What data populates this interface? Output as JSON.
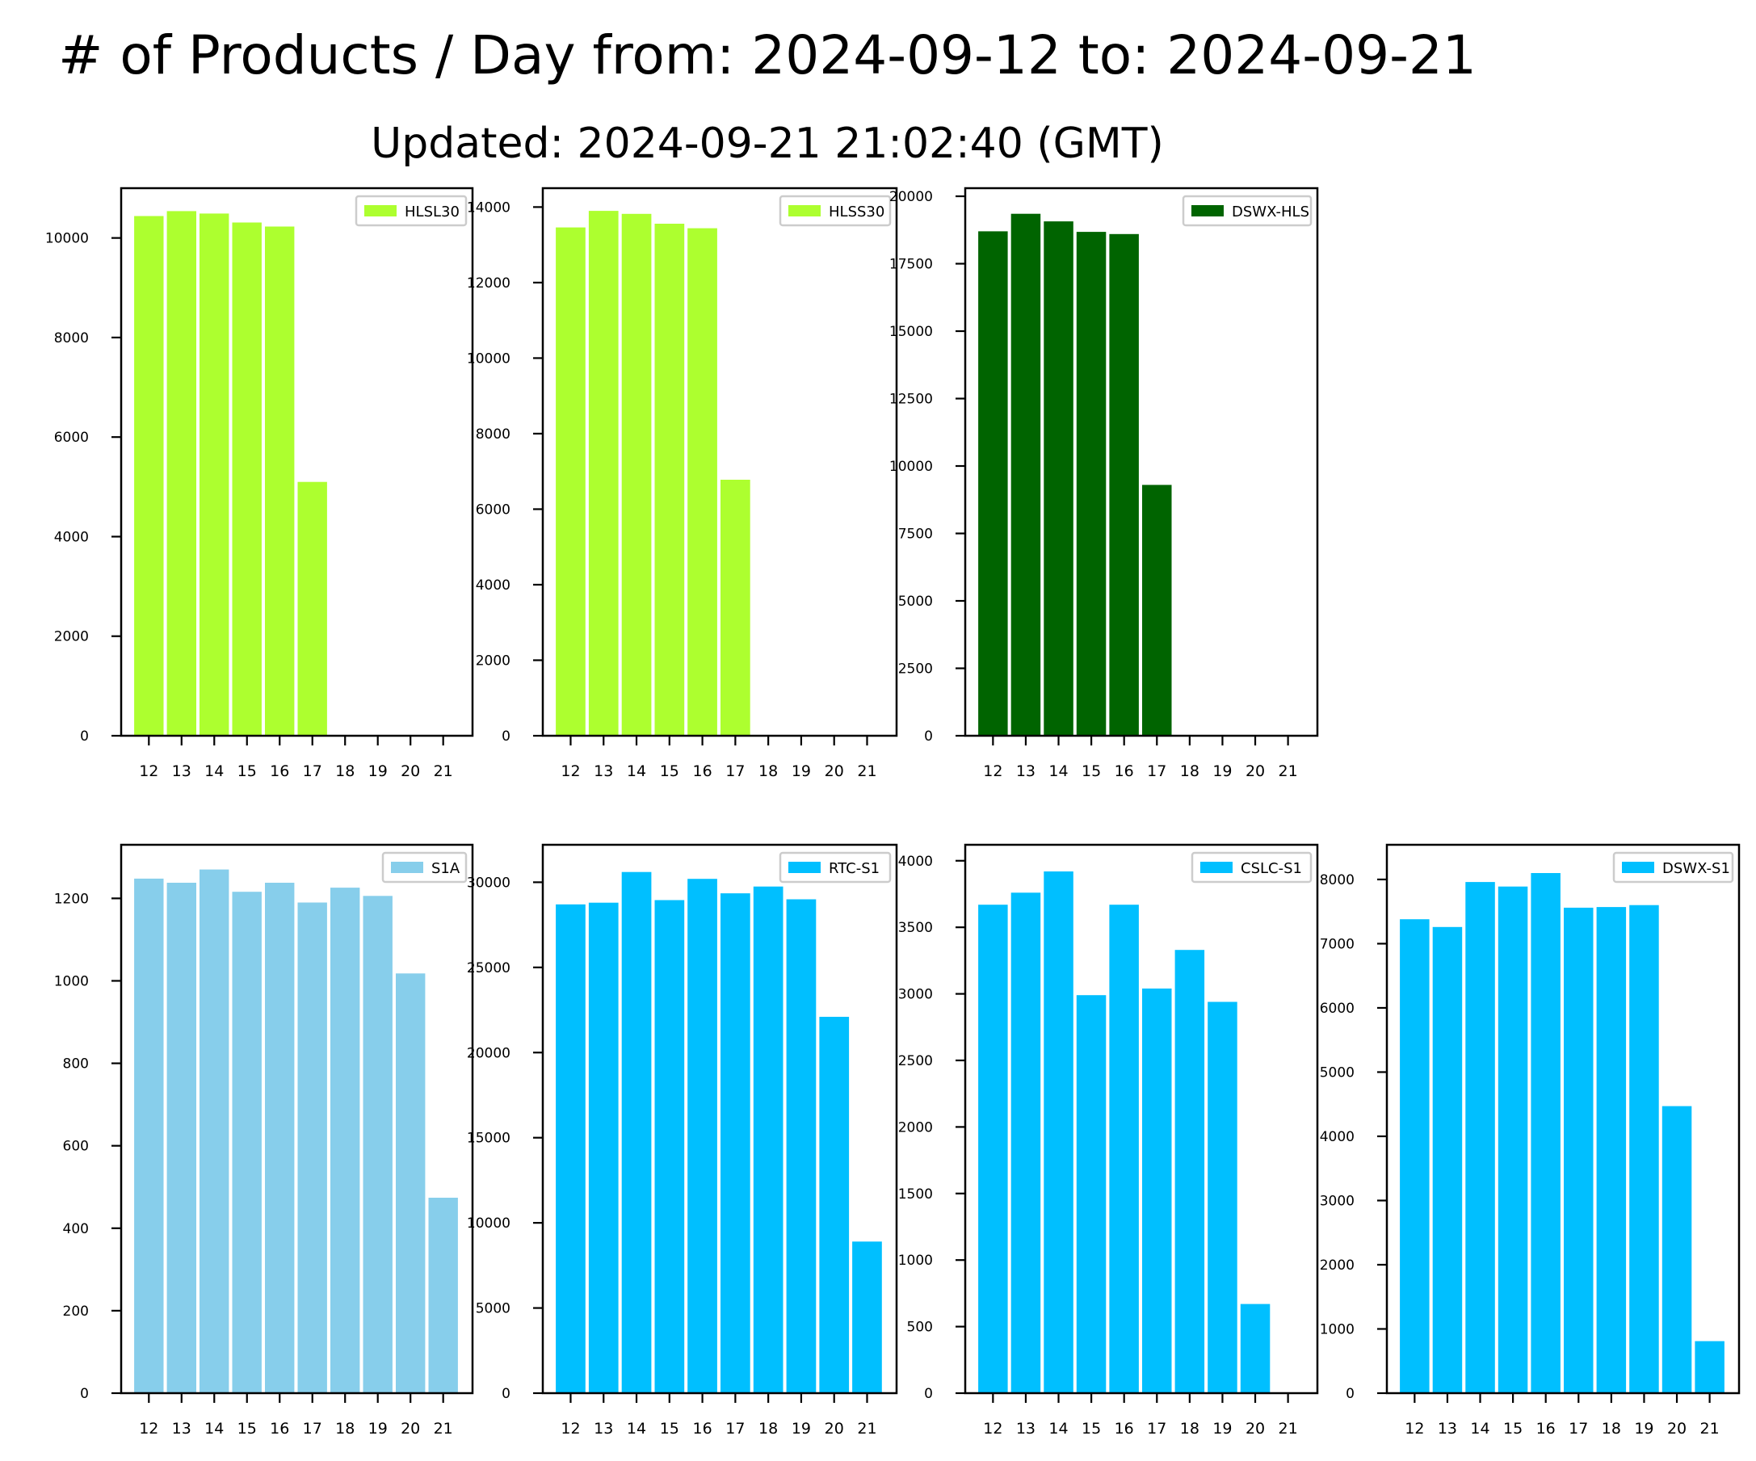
{
  "title": "# of Products / Day from: 2024-09-12 to: 2024-09-21",
  "subtitle": "Updated: 2024-09-21 21:02:40 (GMT)",
  "chart_data": [
    {
      "type": "bar",
      "categories": [
        "12",
        "13",
        "14",
        "15",
        "16",
        "17",
        "18",
        "19",
        "20",
        "21"
      ],
      "series": [
        {
          "name": "HLSL30",
          "color": "#adff2f",
          "values": [
            10440,
            10540,
            10490,
            10310,
            10230,
            5100,
            0,
            0,
            0,
            0
          ]
        }
      ],
      "ylim": [
        0,
        11000
      ],
      "yticks": [
        0,
        2000,
        4000,
        6000,
        8000,
        10000
      ],
      "legend": "top-right"
    },
    {
      "type": "bar",
      "categories": [
        "12",
        "13",
        "14",
        "15",
        "16",
        "17",
        "18",
        "19",
        "20",
        "21"
      ],
      "series": [
        {
          "name": "HLSS30",
          "color": "#adff2f",
          "values": [
            13460,
            13900,
            13820,
            13560,
            13440,
            6780,
            0,
            0,
            0,
            0
          ]
        }
      ],
      "ylim": [
        0,
        14500
      ],
      "yticks": [
        0,
        2000,
        4000,
        6000,
        8000,
        10000,
        12000,
        14000
      ],
      "legend": "top-right"
    },
    {
      "type": "bar",
      "categories": [
        "12",
        "13",
        "14",
        "15",
        "16",
        "17",
        "18",
        "19",
        "20",
        "21"
      ],
      "series": [
        {
          "name": "DSWX-HLS",
          "color": "#006400",
          "values": [
            18700,
            19350,
            19070,
            18680,
            18600,
            9300,
            0,
            0,
            0,
            0
          ]
        }
      ],
      "ylim": [
        0,
        20300
      ],
      "yticks": [
        0,
        2500,
        5000,
        7500,
        10000,
        12500,
        15000,
        17500,
        20000
      ],
      "legend": "top-right"
    },
    {
      "type": "bar",
      "categories": [
        "12",
        "13",
        "14",
        "15",
        "16",
        "17",
        "18",
        "19",
        "20",
        "21"
      ],
      "series": [
        {
          "name": "S1A",
          "color": "#87ceeb",
          "values": [
            1248,
            1238,
            1270,
            1216,
            1238,
            1190,
            1226,
            1206,
            1018,
            474
          ]
        }
      ],
      "ylim": [
        0,
        1330
      ],
      "yticks": [
        0,
        200,
        400,
        600,
        800,
        1000,
        1200
      ],
      "legend": "top-right"
    },
    {
      "type": "bar",
      "categories": [
        "12",
        "13",
        "14",
        "15",
        "16",
        "17",
        "18",
        "19",
        "20",
        "21"
      ],
      "series": [
        {
          "name": "RTC-S1",
          "color": "#00bfff",
          "values": [
            28700,
            28800,
            30600,
            28950,
            30200,
            29350,
            29750,
            29000,
            22100,
            8900
          ]
        }
      ],
      "ylim": [
        0,
        32200
      ],
      "yticks": [
        0,
        5000,
        10000,
        15000,
        20000,
        25000,
        30000
      ],
      "legend": "top-right"
    },
    {
      "type": "bar",
      "categories": [
        "12",
        "13",
        "14",
        "15",
        "16",
        "17",
        "18",
        "19",
        "20",
        "21"
      ],
      "series": [
        {
          "name": "CSLC-S1",
          "color": "#00bfff",
          "values": [
            3670,
            3760,
            3920,
            2990,
            3670,
            3040,
            3330,
            2940,
            670,
            0
          ]
        }
      ],
      "ylim": [
        0,
        4120
      ],
      "yticks": [
        0,
        500,
        1000,
        1500,
        2000,
        2500,
        3000,
        3500,
        4000
      ],
      "legend": "top-right"
    },
    {
      "type": "bar",
      "categories": [
        "12",
        "13",
        "14",
        "15",
        "16",
        "17",
        "18",
        "19",
        "20",
        "21"
      ],
      "series": [
        {
          "name": "DSWX-S1",
          "color": "#00bfff",
          "values": [
            7380,
            7260,
            7960,
            7890,
            8100,
            7560,
            7570,
            7600,
            4470,
            810
          ]
        }
      ],
      "ylim": [
        0,
        8540
      ],
      "yticks": [
        0,
        1000,
        2000,
        3000,
        4000,
        5000,
        6000,
        7000,
        8000
      ],
      "legend": "top-right"
    }
  ]
}
